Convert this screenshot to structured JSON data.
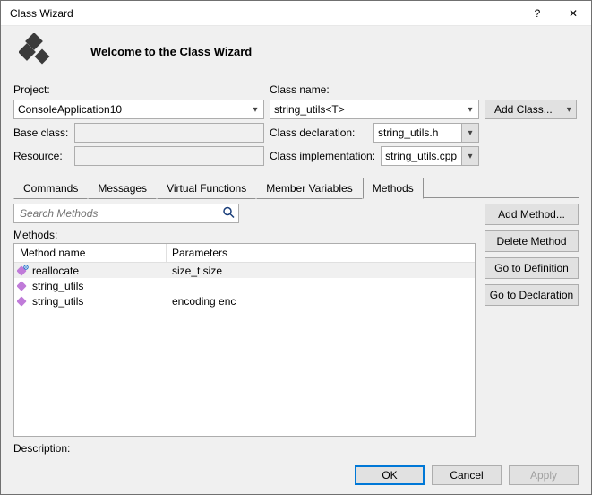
{
  "window": {
    "title": "Class Wizard",
    "help_glyph": "?",
    "close_glyph": "✕"
  },
  "header": {
    "welcome": "Welcome to the Class Wizard",
    "logo_color": "#3b3b3b"
  },
  "form": {
    "project_label": "Project:",
    "project_value": "ConsoleApplication10",
    "baseclass_label": "Base class:",
    "baseclass_value": "",
    "resource_label": "Resource:",
    "resource_value": "",
    "classname_label": "Class name:",
    "classname_value": "string_utils<T>",
    "decl_label": "Class declaration:",
    "decl_value": "string_utils.h",
    "impl_label": "Class implementation:",
    "impl_value": "string_utils.cpp",
    "addclass_label": "Add Class..."
  },
  "tabs": {
    "items": [
      {
        "label": "Commands"
      },
      {
        "label": "Messages"
      },
      {
        "label": "Virtual Functions"
      },
      {
        "label": "Member Variables"
      },
      {
        "label": "Methods"
      }
    ],
    "active_index": 4
  },
  "search": {
    "placeholder": "Search Methods",
    "icon_color": "#1a3e7a"
  },
  "methods": {
    "label": "Methods:",
    "columns": {
      "name": "Method name",
      "params": "Parameters"
    },
    "rows": [
      {
        "name": "reallocate",
        "params": "size_t size",
        "selected": true,
        "icon_sub": true
      },
      {
        "name": "string_utils",
        "params": "",
        "selected": false,
        "icon_sub": false
      },
      {
        "name": "string_utils",
        "params": "encoding enc",
        "selected": false,
        "icon_sub": false
      }
    ],
    "icon": {
      "cube_color": "#c07bd9",
      "sub_color": "#0a64c4"
    }
  },
  "side_buttons": {
    "add": "Add Method...",
    "delete": "Delete Method",
    "godef": "Go to Definition",
    "godecl": "Go to Declaration"
  },
  "description": {
    "label": "Description:"
  },
  "footer": {
    "ok": "OK",
    "cancel": "Cancel",
    "apply": "Apply"
  },
  "colors": {
    "border": "#adadad",
    "btn_bg": "#e1e1e1",
    "accent": "#0078d7"
  }
}
